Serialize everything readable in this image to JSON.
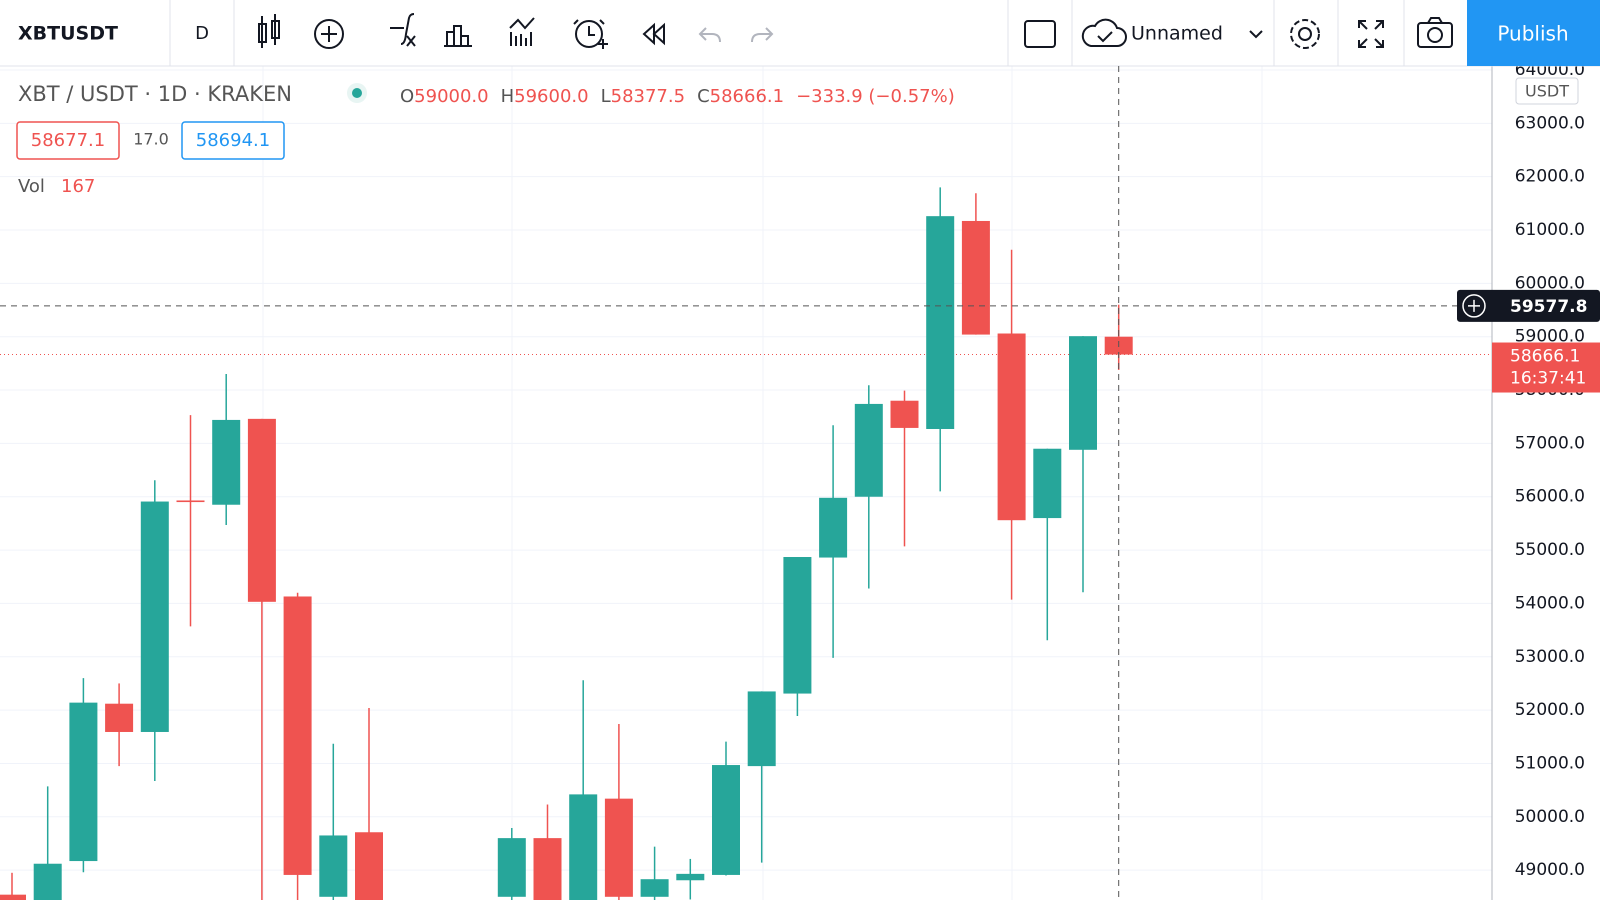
{
  "toolbar": {
    "symbol": "XBTUSDT",
    "interval": "D",
    "layout_name": "Unnamed",
    "publish": "Publish"
  },
  "chart_data": {
    "type": "candlestick",
    "title": "XBT / USDT · 1D · KRAKEN",
    "legend": [
      {
        "key": "O",
        "value": "59000.0"
      },
      {
        "key": "H",
        "value": "59600.0"
      },
      {
        "key": "L",
        "value": "58377.5"
      },
      {
        "key": "C",
        "value": "58666.1"
      }
    ],
    "change": "−333.9 (−0.57%)",
    "bid": "58677.1",
    "spread": "17.0",
    "ask": "58694.1",
    "volume_label": "Vol",
    "volume": "167",
    "currency": "USDT",
    "up_color": "#26a69a",
    "down_color": "#ef5350",
    "open": [
      48540,
      48300,
      49170,
      52120,
      51590,
      55930,
      55850,
      57460,
      54130,
      48500,
      49710,
      null,
      null,
      null,
      48500,
      49600,
      48400,
      50340,
      48500,
      48810,
      48910,
      50950,
      52310,
      54860,
      56000,
      57800,
      57270,
      61170,
      59060,
      55600,
      56880,
      59000
    ],
    "high": [
      48950,
      50570,
      52600,
      52500,
      56310,
      57530,
      58300,
      57460,
      54200,
      51370,
      52040,
      null,
      null,
      null,
      49790,
      50230,
      52560,
      51740,
      49440,
      49210,
      51410,
      52350,
      54870,
      57340,
      58090,
      57990,
      61800,
      61690,
      60630,
      56900,
      59010,
      59600
    ],
    "low": [
      48000,
      48000,
      48960,
      50950,
      50670,
      53570,
      55470,
      48000,
      48000,
      48300,
      48000,
      null,
      null,
      null,
      48000,
      48000,
      48000,
      48000,
      48000,
      48450,
      48900,
      49140,
      51890,
      52980,
      54280,
      55070,
      56100,
      59040,
      54070,
      53310,
      54210,
      58377.5
    ],
    "close": [
      48200,
      49120,
      52140,
      51590,
      55910,
      55900,
      57440,
      54030,
      48910,
      49650,
      48400,
      null,
      null,
      null,
      49600,
      48400,
      50420,
      48500,
      48830,
      48930,
      50970,
      52350,
      54870,
      55980,
      57740,
      57290,
      61260,
      59040,
      55560,
      56900,
      59010,
      58666.1
    ],
    "ylim": [
      48440,
      64075
    ],
    "yticks": [
      {
        "value": 49000,
        "label": "49000.0"
      },
      {
        "value": 50000,
        "label": "50000.0"
      },
      {
        "value": 51000,
        "label": "51000.0"
      },
      {
        "value": 52000,
        "label": "52000.0"
      },
      {
        "value": 53000,
        "label": "53000.0"
      },
      {
        "value": 54000,
        "label": "54000.0"
      },
      {
        "value": 55000,
        "label": "55000.0"
      },
      {
        "value": 56000,
        "label": "56000.0"
      },
      {
        "value": 57000,
        "label": "57000.0"
      },
      {
        "value": 58000,
        "label": "58000.0"
      },
      {
        "value": 59000,
        "label": "59000.0"
      },
      {
        "value": 60000,
        "label": "60000.0"
      },
      {
        "value": 61000,
        "label": "61000.0"
      },
      {
        "value": 62000,
        "label": "62000.0"
      },
      {
        "value": 63000,
        "label": "63000.0"
      },
      {
        "value": 64000,
        "label": "64000.0"
      }
    ],
    "grid": true,
    "crosshair": 59577.8,
    "countdown": "16:37:41"
  }
}
